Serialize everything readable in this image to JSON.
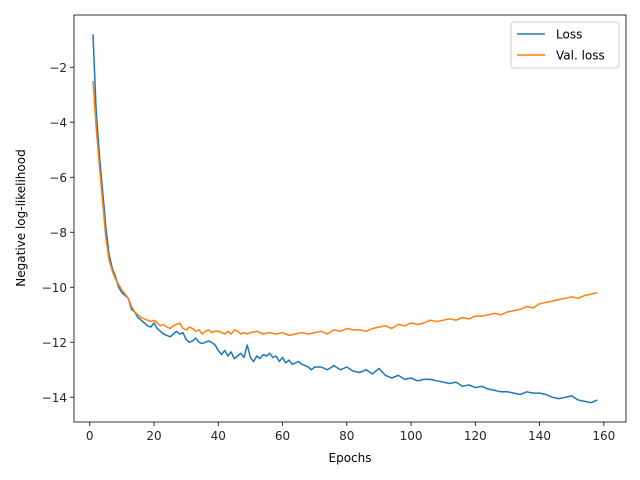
{
  "chart_data": {
    "type": "line",
    "title": "",
    "xlabel": "Epochs",
    "ylabel": "Negative log-likelihood",
    "xlim": [
      -4.9,
      166.9
    ],
    "ylim": [
      -14.9,
      -0.1
    ],
    "xticks": [
      0,
      20,
      40,
      60,
      80,
      100,
      120,
      140,
      160
    ],
    "yticks": [
      -14,
      -12,
      -10,
      -8,
      -6,
      -4,
      -2
    ],
    "grid": false,
    "legend_position": "top-right",
    "series": [
      {
        "name": "Loss",
        "color": "#1f77b4",
        "x": [
          1,
          2,
          3,
          4,
          5,
          6,
          7,
          8,
          9,
          10,
          12,
          13,
          14,
          15,
          16,
          17,
          18,
          19,
          20,
          21,
          22,
          23,
          24,
          25,
          26,
          27,
          28,
          29,
          30,
          31,
          32,
          33,
          34,
          35,
          36,
          37,
          38,
          39,
          40,
          41,
          42,
          43,
          44,
          45,
          46,
          47,
          48,
          49,
          50,
          51,
          52,
          53,
          54,
          55,
          56,
          57,
          58,
          59,
          60,
          61,
          62,
          63,
          64,
          65,
          66,
          67,
          68,
          69,
          70,
          72,
          74,
          76,
          78,
          80,
          82,
          84,
          86,
          88,
          90,
          92,
          94,
          96,
          98,
          100,
          102,
          104,
          106,
          108,
          110,
          112,
          114,
          116,
          118,
          120,
          122,
          124,
          126,
          128,
          130,
          132,
          134,
          136,
          138,
          140,
          142,
          144,
          146,
          148,
          150,
          152,
          154,
          156,
          158
        ],
        "y": [
          -0.8,
          -3.6,
          -5.2,
          -6.5,
          -7.8,
          -8.8,
          -9.3,
          -9.6,
          -10.0,
          -10.2,
          -10.4,
          -10.8,
          -10.9,
          -11.1,
          -11.2,
          -11.3,
          -11.4,
          -11.45,
          -11.3,
          -11.5,
          -11.6,
          -11.7,
          -11.75,
          -11.8,
          -11.7,
          -11.6,
          -11.7,
          -11.65,
          -11.9,
          -12.0,
          -11.95,
          -11.85,
          -12.0,
          -12.05,
          -12.0,
          -11.95,
          -12.0,
          -12.1,
          -12.3,
          -12.45,
          -12.3,
          -12.5,
          -12.35,
          -12.6,
          -12.5,
          -12.4,
          -12.55,
          -12.1,
          -12.55,
          -12.7,
          -12.5,
          -12.6,
          -12.45,
          -12.5,
          -12.4,
          -12.55,
          -12.5,
          -12.7,
          -12.55,
          -12.75,
          -12.65,
          -12.8,
          -12.75,
          -12.7,
          -12.8,
          -12.85,
          -12.9,
          -13.0,
          -12.9,
          -12.9,
          -13.0,
          -12.85,
          -13.0,
          -12.9,
          -13.05,
          -13.1,
          -13.0,
          -13.15,
          -12.95,
          -13.2,
          -13.3,
          -13.2,
          -13.35,
          -13.3,
          -13.4,
          -13.35,
          -13.35,
          -13.4,
          -13.45,
          -13.5,
          -13.45,
          -13.6,
          -13.55,
          -13.65,
          -13.6,
          -13.7,
          -13.75,
          -13.8,
          -13.8,
          -13.85,
          -13.9,
          -13.8,
          -13.85,
          -13.85,
          -13.9,
          -14.0,
          -14.05,
          -14.0,
          -13.95,
          -14.1,
          -14.15,
          -14.2,
          -14.1
        ]
      },
      {
        "name": "Val. loss",
        "color": "#ff7f0e",
        "x": [
          1,
          2,
          3,
          4,
          5,
          6,
          7,
          8,
          9,
          10,
          12,
          13,
          14,
          15,
          16,
          17,
          18,
          19,
          20,
          21,
          22,
          23,
          24,
          25,
          26,
          27,
          28,
          29,
          30,
          31,
          32,
          33,
          34,
          35,
          36,
          37,
          38,
          39,
          40,
          41,
          42,
          43,
          44,
          45,
          46,
          47,
          48,
          49,
          50,
          52,
          54,
          56,
          58,
          60,
          62,
          64,
          66,
          68,
          70,
          72,
          74,
          76,
          78,
          80,
          82,
          84,
          86,
          88,
          90,
          92,
          94,
          96,
          98,
          100,
          102,
          104,
          106,
          108,
          110,
          112,
          114,
          116,
          118,
          120,
          122,
          124,
          126,
          128,
          130,
          132,
          134,
          136,
          138,
          140,
          142,
          144,
          146,
          148,
          150,
          152,
          154,
          156,
          158
        ],
        "y": [
          -2.5,
          -4.2,
          -5.6,
          -6.9,
          -8.2,
          -9.0,
          -9.4,
          -9.7,
          -9.9,
          -10.1,
          -10.4,
          -10.7,
          -10.9,
          -11.0,
          -11.1,
          -11.15,
          -11.2,
          -11.25,
          -11.2,
          -11.3,
          -11.4,
          -11.35,
          -11.45,
          -11.5,
          -11.4,
          -11.35,
          -11.3,
          -11.5,
          -11.55,
          -11.45,
          -11.5,
          -11.6,
          -11.55,
          -11.7,
          -11.6,
          -11.55,
          -11.65,
          -11.6,
          -11.6,
          -11.65,
          -11.7,
          -11.6,
          -11.7,
          -11.55,
          -11.6,
          -11.7,
          -11.65,
          -11.7,
          -11.65,
          -11.6,
          -11.7,
          -11.65,
          -11.7,
          -11.65,
          -11.75,
          -11.7,
          -11.65,
          -11.7,
          -11.65,
          -11.6,
          -11.7,
          -11.55,
          -11.6,
          -11.5,
          -11.55,
          -11.55,
          -11.6,
          -11.5,
          -11.45,
          -11.4,
          -11.5,
          -11.35,
          -11.4,
          -11.3,
          -11.35,
          -11.3,
          -11.2,
          -11.25,
          -11.2,
          -11.15,
          -11.2,
          -11.1,
          -11.15,
          -11.05,
          -11.05,
          -11.0,
          -10.95,
          -11.0,
          -10.9,
          -10.85,
          -10.8,
          -10.7,
          -10.75,
          -10.6,
          -10.55,
          -10.5,
          -10.45,
          -10.4,
          -10.35,
          -10.4,
          -10.3,
          -10.25,
          -10.2
        ]
      }
    ]
  }
}
